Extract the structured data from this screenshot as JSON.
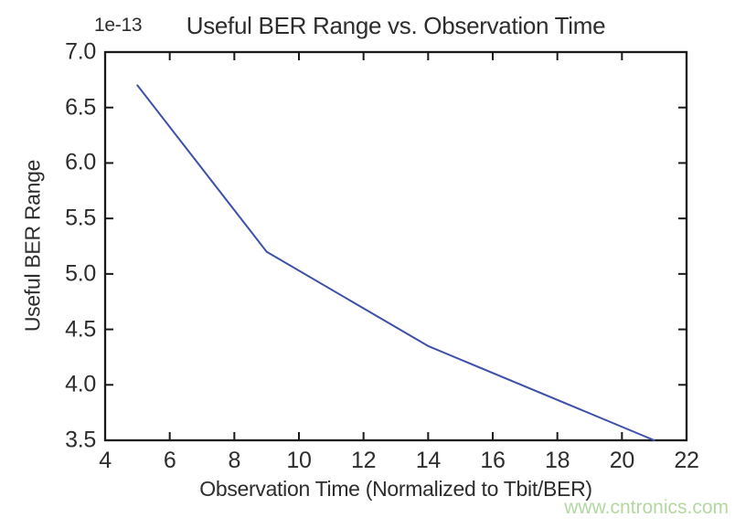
{
  "watermark": {
    "text": "www.cntronics.com",
    "color": "#b4d7a2"
  },
  "colors": {
    "line": "#3e51a8",
    "axis": "#1a1a1a",
    "text": "#2d2d2d",
    "background": "#ffffff"
  },
  "chart_data": {
    "type": "line",
    "title": "Useful BER Range vs. Observation Time",
    "xlabel": "Observation Time (Normalized to Tbit/BER)",
    "ylabel": "Useful BER Range",
    "y_offset_text": "1e-13",
    "xlim": [
      4,
      22
    ],
    "ylim": [
      3.5,
      7.0
    ],
    "x_tick_labels": [
      "4",
      "6",
      "8",
      "10",
      "12",
      "14",
      "16",
      "18",
      "20",
      "22"
    ],
    "y_tick_labels": [
      "3.5",
      "4.0",
      "4.5",
      "5.0",
      "5.5",
      "6.0",
      "6.5",
      "7.0"
    ],
    "grid": false,
    "legend": "none",
    "ticks_direction": "in",
    "frame_on_all_sides": true,
    "series": [
      {
        "name": "Useful BER Range",
        "color": "#3e51a8",
        "points": [
          [
            5,
            6.7
          ],
          [
            9,
            5.2
          ],
          [
            14,
            4.35
          ],
          [
            21,
            3.5
          ]
        ]
      }
    ]
  }
}
